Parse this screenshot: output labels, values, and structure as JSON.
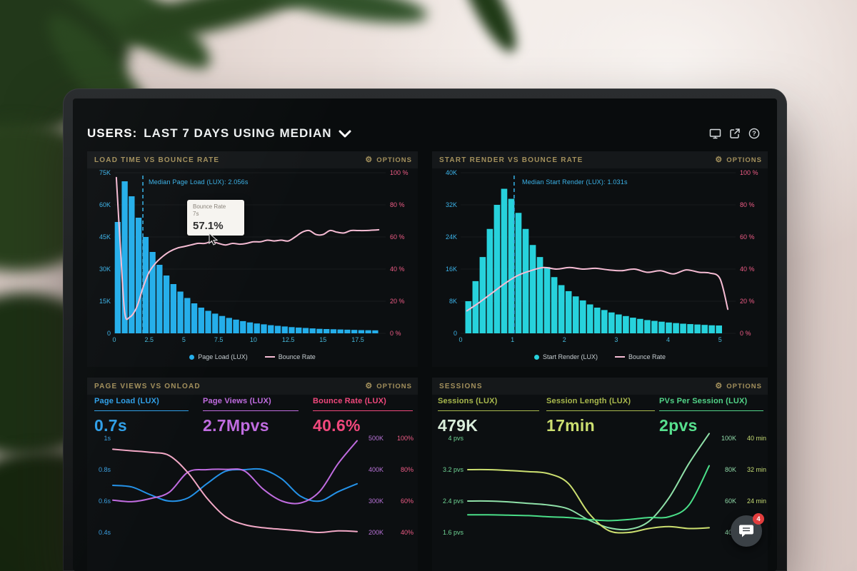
{
  "header": {
    "title_bold": "USERS:",
    "title_rest": "LAST 7 DAYS USING MEDIAN",
    "icons": [
      "display-icon",
      "share-icon",
      "help-icon"
    ]
  },
  "panels": {
    "load_time": {
      "title": "LOAD TIME VS BOUNCE RATE",
      "options_label": "OPTIONS",
      "tooltip": {
        "title": "Bounce Rate",
        "sub": "7s",
        "value": "57.1%"
      },
      "legend": [
        "Page Load (LUX)",
        "Bounce Rate"
      ]
    },
    "start_render": {
      "title": "START RENDER VS BOUNCE RATE",
      "options_label": "OPTIONS",
      "legend": [
        "Start Render (LUX)",
        "Bounce Rate"
      ]
    },
    "page_views": {
      "title": "PAGE VIEWS VS ONLOAD",
      "options_label": "OPTIONS",
      "metrics": [
        {
          "label": "Page Load (LUX)",
          "value": "0.7s",
          "color": "#2f9fe8",
          "value_color": "#2f9fe8"
        },
        {
          "label": "Page Views (LUX)",
          "value": "2.7Mpvs",
          "color": "#c06ce0",
          "value_color": "#c06ce0"
        },
        {
          "label": "Bounce Rate (LUX)",
          "value": "40.6%",
          "color": "#f0487c",
          "value_color": "#f0487c"
        }
      ]
    },
    "sessions": {
      "title": "SESSIONS",
      "options_label": "OPTIONS",
      "metrics": [
        {
          "label": "Sessions (LUX)",
          "value": "479K",
          "color": "#a9b94d",
          "value_color": "#d9edda"
        },
        {
          "label": "Session Length (LUX)",
          "value": "17min",
          "color": "#a9b94d",
          "value_color": "#ccdf70"
        },
        {
          "label": "PVs Per Session (LUX)",
          "value": "2pvs",
          "color": "#52d488",
          "value_color": "#57e08e"
        }
      ]
    }
  },
  "chat": {
    "badge": "4"
  },
  "chart_data": [
    {
      "id": "load_time",
      "type": "histogram_line",
      "title": "Load Time vs Bounce Rate",
      "x_range": [
        0,
        19.5
      ],
      "x_ticks": [
        0,
        2.5,
        5,
        7.5,
        10,
        12.5,
        15,
        17.5
      ],
      "y_left": {
        "max": 75,
        "ticks": [
          "75K",
          "60K",
          "45K",
          "30K",
          "15K",
          "0"
        ]
      },
      "y_right": {
        "max": 100,
        "ticks": [
          "100 %",
          "80 %",
          "60 %",
          "40 %",
          "20 %",
          "0 %"
        ]
      },
      "bars": {
        "name": "Page Load (LUX)",
        "color": "#24aeea",
        "start": 0,
        "width": 0.5,
        "values": [
          52,
          71,
          64,
          54,
          45,
          38,
          32,
          27,
          23,
          19.5,
          16.5,
          14,
          12,
          10.5,
          9.2,
          8.1,
          7.2,
          6.4,
          5.7,
          5.1,
          4.6,
          4.2,
          3.8,
          3.5,
          3.2,
          2.9,
          2.7,
          2.5,
          2.3,
          2.1,
          2.0,
          1.9,
          1.8,
          1.7,
          1.6,
          1.5,
          1.45,
          1.4
        ]
      },
      "line": {
        "name": "Bounce Rate",
        "color": "#f6bcd4",
        "points": [
          [
            0.15,
            97
          ],
          [
            0.45,
            52
          ],
          [
            0.75,
            13
          ],
          [
            1.1,
            10
          ],
          [
            1.6,
            16
          ],
          [
            2.05,
            28
          ],
          [
            2.5,
            38
          ],
          [
            3,
            44
          ],
          [
            3.5,
            48
          ],
          [
            4,
            51
          ],
          [
            4.5,
            53
          ],
          [
            5,
            54
          ],
          [
            5.5,
            55
          ],
          [
            6,
            56
          ],
          [
            6.5,
            56
          ],
          [
            7,
            57.1
          ],
          [
            7.5,
            56
          ],
          [
            8,
            55
          ],
          [
            8.5,
            56
          ],
          [
            9,
            55.5
          ],
          [
            9.5,
            56
          ],
          [
            10,
            57
          ],
          [
            10.5,
            57
          ],
          [
            11,
            58
          ],
          [
            11.5,
            57.5
          ],
          [
            12,
            58
          ],
          [
            12.5,
            57.5
          ],
          [
            13,
            60
          ],
          [
            13.5,
            63
          ],
          [
            14,
            64
          ],
          [
            14.5,
            61.5
          ],
          [
            15,
            61.5
          ],
          [
            15.5,
            64
          ],
          [
            16,
            63
          ],
          [
            16.5,
            62.5
          ],
          [
            17,
            64
          ],
          [
            17.5,
            64
          ],
          [
            18,
            64
          ],
          [
            19,
            64.5
          ]
        ]
      },
      "median": {
        "x": 2.056,
        "label": "Median Page Load (LUX): 2.056s",
        "color": "#36b3e8"
      }
    },
    {
      "id": "start_render",
      "type": "histogram_line",
      "title": "Start Render vs Bounce Rate",
      "x_range": [
        0,
        5.3
      ],
      "x_ticks": [
        0,
        1,
        2,
        3,
        4,
        5
      ],
      "y_left": {
        "max": 40,
        "ticks": [
          "40K",
          "32K",
          "24K",
          "16K",
          "8K",
          "0"
        ]
      },
      "y_right": {
        "max": 100,
        "ticks": [
          "100 %",
          "80 %",
          "60 %",
          "40 %",
          "20 %",
          "0 %"
        ]
      },
      "bars": {
        "name": "Start Render (LUX)",
        "color": "#27d2dc",
        "start": 0.08,
        "width": 0.138,
        "values": [
          8,
          13,
          19,
          26,
          32,
          36,
          33.5,
          30,
          26,
          22,
          19,
          16.5,
          14,
          12,
          10.5,
          9.2,
          8.2,
          7.2,
          6.4,
          5.8,
          5.2,
          4.7,
          4.3,
          3.9,
          3.6,
          3.3,
          3.1,
          2.9,
          2.7,
          2.55,
          2.4,
          2.3,
          2.2,
          2.1,
          2.0,
          1.95
        ]
      },
      "line": {
        "name": "Bounce Rate",
        "color": "#f6bcd4",
        "points": [
          [
            0.12,
            14
          ],
          [
            0.35,
            19
          ],
          [
            0.6,
            25
          ],
          [
            0.85,
            31
          ],
          [
            1.1,
            36
          ],
          [
            1.35,
            39
          ],
          [
            1.6,
            41
          ],
          [
            1.85,
            40
          ],
          [
            2.1,
            41
          ],
          [
            2.35,
            40
          ],
          [
            2.6,
            40.5
          ],
          [
            2.85,
            39.5
          ],
          [
            3.1,
            39
          ],
          [
            3.35,
            40
          ],
          [
            3.6,
            38
          ],
          [
            3.85,
            39
          ],
          [
            4.1,
            37
          ],
          [
            4.35,
            39.5
          ],
          [
            4.6,
            38
          ],
          [
            4.8,
            37.5
          ],
          [
            5.0,
            34
          ],
          [
            5.15,
            15
          ]
        ]
      },
      "median": {
        "x": 1.031,
        "label": "Median Start Render (LUX): 1.031s",
        "color": "#36b3e8"
      }
    },
    {
      "id": "page_views_onload",
      "type": "multi_line",
      "title": "Page Views vs Onload",
      "row0": 16,
      "row_gap": 44,
      "axes": {
        "seconds": {
          "tick_labels": [
            "1s",
            "0.8s",
            "0.6s",
            "0.4s"
          ],
          "top_val": 1,
          "bottom_val": 0.4
        },
        "pageviews": {
          "tick_labels": [
            "500K",
            "400K",
            "300K",
            "200K"
          ],
          "top_val": 500,
          "bottom_val": 200
        },
        "percent": {
          "tick_labels": [
            "100%",
            "80%",
            "60%",
            "40%"
          ],
          "top_val": 100,
          "bottom_val": 40
        }
      },
      "series": [
        {
          "name": "Page Load (LUX)",
          "axis": "seconds",
          "color": "#2492e8",
          "values": [
            0.7,
            0.69,
            0.64,
            0.6,
            0.62,
            0.71,
            0.79,
            0.8,
            0.8,
            0.74,
            0.63,
            0.6,
            0.66,
            0.71
          ]
        },
        {
          "name": "Page Views (LUX)",
          "axis": "pageviews",
          "color": "#c06ce0",
          "values": [
            303,
            298,
            308,
            328,
            392,
            400,
            401,
            396,
            338,
            300,
            294,
            330,
            420,
            492
          ]
        },
        {
          "name": "Bounce Rate (LUX)",
          "axis": "percent",
          "color": "#f2a8c6",
          "values": [
            93,
            92,
            91,
            89,
            78,
            62,
            50,
            45,
            43,
            42,
            41,
            40,
            41,
            40.6
          ]
        }
      ]
    },
    {
      "id": "sessions",
      "type": "multi_line",
      "title": "Sessions",
      "row0": 16,
      "row_gap": 44,
      "axes": {
        "pvs": {
          "tick_labels": [
            "4 pvs",
            "3.2 pvs",
            "2.4 pvs",
            "1.6 pvs"
          ],
          "top_val": 4,
          "bottom_val": 1.6
        },
        "sessions_k": {
          "tick_labels": [
            "100K",
            "80K",
            "60K",
            "40K"
          ],
          "top_val": 100,
          "bottom_val": 40
        },
        "minutes": {
          "tick_labels": [
            "40 min",
            "32 min",
            "24 min",
            ""
          ],
          "top_val": 40,
          "bottom_val": 16
        }
      },
      "series": [
        {
          "name": "Sessions (LUX)",
          "axis": "sessions_k",
          "color": "#8fe0a8",
          "values": [
            60,
            60,
            59.5,
            58.5,
            57.5,
            55,
            48,
            43,
            42,
            47,
            62,
            84,
            103
          ]
        },
        {
          "name": "Session Length (LUX)",
          "axis": "minutes",
          "color": "#ccdf70",
          "values": [
            32,
            32,
            31.8,
            31.5,
            31,
            28.5,
            21,
            16.5,
            16,
            17,
            17.5,
            17,
            17.2
          ]
        },
        {
          "name": "PVs Per Session (LUX)",
          "axis": "pvs",
          "color": "#4ade88",
          "values": [
            2.05,
            2.05,
            2.04,
            2.03,
            2.0,
            1.98,
            1.93,
            1.9,
            1.93,
            1.98,
            2.0,
            2.3,
            3.3
          ]
        }
      ]
    }
  ]
}
